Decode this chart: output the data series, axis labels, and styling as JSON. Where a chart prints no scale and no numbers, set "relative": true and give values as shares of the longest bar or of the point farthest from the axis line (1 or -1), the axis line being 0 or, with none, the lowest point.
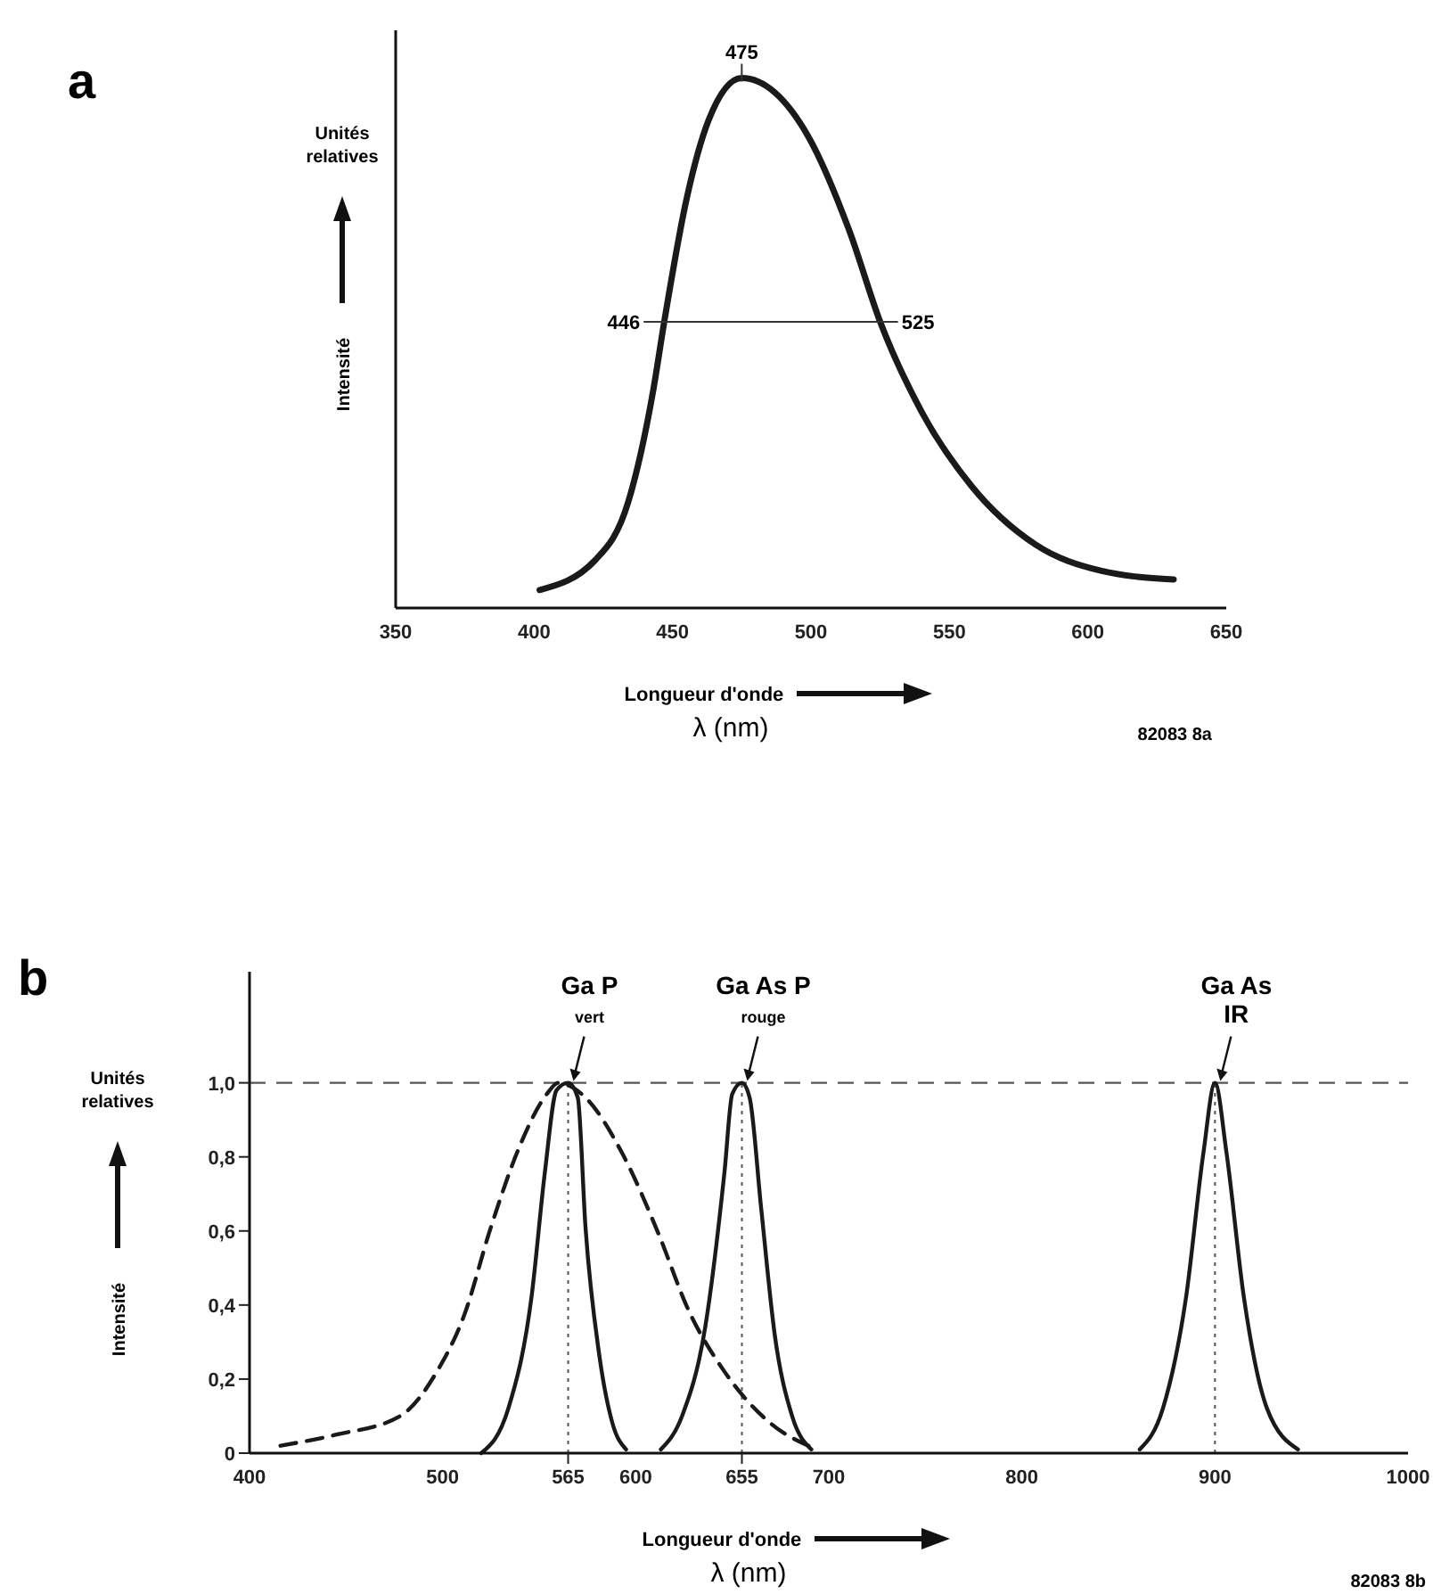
{
  "chart_data": [
    {
      "type": "line",
      "title": "a",
      "xlabel": "Longueur d'onde\nλ (nm)",
      "ylabel": "Intensité",
      "relative": true,
      "xlim": [
        350,
        650
      ],
      "xticks": [
        350,
        400,
        450,
        500,
        550,
        600,
        650
      ],
      "tick_labels": "x",
      "grid": false,
      "line_style": "solid",
      "marker": "none",
      "series": [
        {
          "color": "#1a1a1a",
          "x": [
            402,
            422,
            434,
            443,
            447,
            455,
            463,
            475,
            499,
            514,
            525,
            540,
            558,
            581,
            605,
            631
          ],
          "values": [
            0.034,
            0.09,
            0.2,
            0.41,
            0.54,
            0.77,
            0.92,
            1.0,
            0.89,
            0.71,
            0.54,
            0.37,
            0.23,
            0.12,
            0.07,
            0.054
          ]
        }
      ],
      "annotations": [
        {
          "text": "475",
          "x": 475,
          "y": 1.0
        },
        {
          "text": "446",
          "x": 446,
          "y": 0.54
        },
        {
          "text": "525",
          "x": 525,
          "y": 0.54
        },
        "Unités relatives",
        "82083  8a"
      ]
    },
    {
      "type": "line",
      "title": "b",
      "xlabel": "Longueur d'onde\nλ (nm)",
      "ylabel": "Intensité",
      "xlim": [
        400,
        1000
      ],
      "ylim": [
        0,
        1.3
      ],
      "xticks": [
        400,
        500,
        600,
        700,
        800,
        900,
        1000,
        {
          "value": 565,
          "label": "565"
        },
        {
          "value": 655,
          "label": "655"
        }
      ],
      "yticks": [
        {
          "value": 0,
          "label": "0"
        },
        {
          "value": 0.2,
          "label": "0,2"
        },
        {
          "value": 0.4,
          "label": "0,4"
        },
        {
          "value": 0.6,
          "label": "0,6"
        },
        {
          "value": 0.8,
          "label": "0,8"
        },
        {
          "value": 1,
          "label": "1,0"
        }
      ],
      "grid": false,
      "marker": "none",
      "ref_lines": [
        {
          "axis": "y",
          "value": 1,
          "line_style": "dashed",
          "color": "#555555"
        },
        {
          "axis": "x",
          "value": 565,
          "line_style": "dotted",
          "color": "#555555"
        },
        {
          "axis": "x",
          "value": 655,
          "line_style": "dotted",
          "color": "#555555"
        },
        {
          "axis": "x",
          "value": 900,
          "line_style": "dotted",
          "color": "#555555"
        }
      ],
      "series": [
        {
          "color": "#1a1a1a",
          "line_style": "dashed",
          "x": [
            416,
            445,
            478,
            497,
            511,
            525,
            540,
            554,
            560,
            574,
            593,
            612,
            627,
            646,
            670,
            694
          ],
          "values": [
            0.02,
            0.05,
            0.1,
            0.22,
            0.37,
            0.61,
            0.83,
            0.97,
            1.0,
            0.96,
            0.81,
            0.59,
            0.39,
            0.22,
            0.08,
            0.01
          ]
        },
        {
          "color": "#1a1a1a",
          "line_style": "solid",
          "x": [
            520,
            534,
            546,
            553,
            559,
            565,
            570,
            574,
            581,
            588,
            595
          ],
          "values": [
            0,
            0.12,
            0.42,
            0.76,
            0.98,
            1.0,
            0.96,
            0.61,
            0.27,
            0.08,
            0.01
          ]
        },
        {
          "color": "#1a1a1a",
          "line_style": "solid",
          "x": [
            613,
            624,
            636,
            646,
            650,
            655,
            659,
            665,
            672,
            681,
            691
          ],
          "values": [
            0.01,
            0.1,
            0.34,
            0.76,
            0.97,
            1.0,
            0.96,
            0.66,
            0.32,
            0.1,
            0.01
          ]
        },
        {
          "color": "#1a1a1a",
          "line_style": "solid",
          "x": [
            861,
            873,
            885,
            894,
            900,
            906,
            915,
            927,
            943
          ],
          "values": [
            0.01,
            0.12,
            0.42,
            0.81,
            1.0,
            0.81,
            0.42,
            0.12,
            0.01
          ]
        }
      ],
      "annotations": [
        {
          "text": "Ga P\nvert",
          "x": 565,
          "y": 1.0
        },
        {
          "text": "Ga As P\nrouge",
          "x": 655,
          "y": 1.0
        },
        {
          "text": "Ga As\nIR",
          "x": 900,
          "y": 1.0
        },
        "Unités relatives",
        "82083  8b"
      ]
    }
  ]
}
